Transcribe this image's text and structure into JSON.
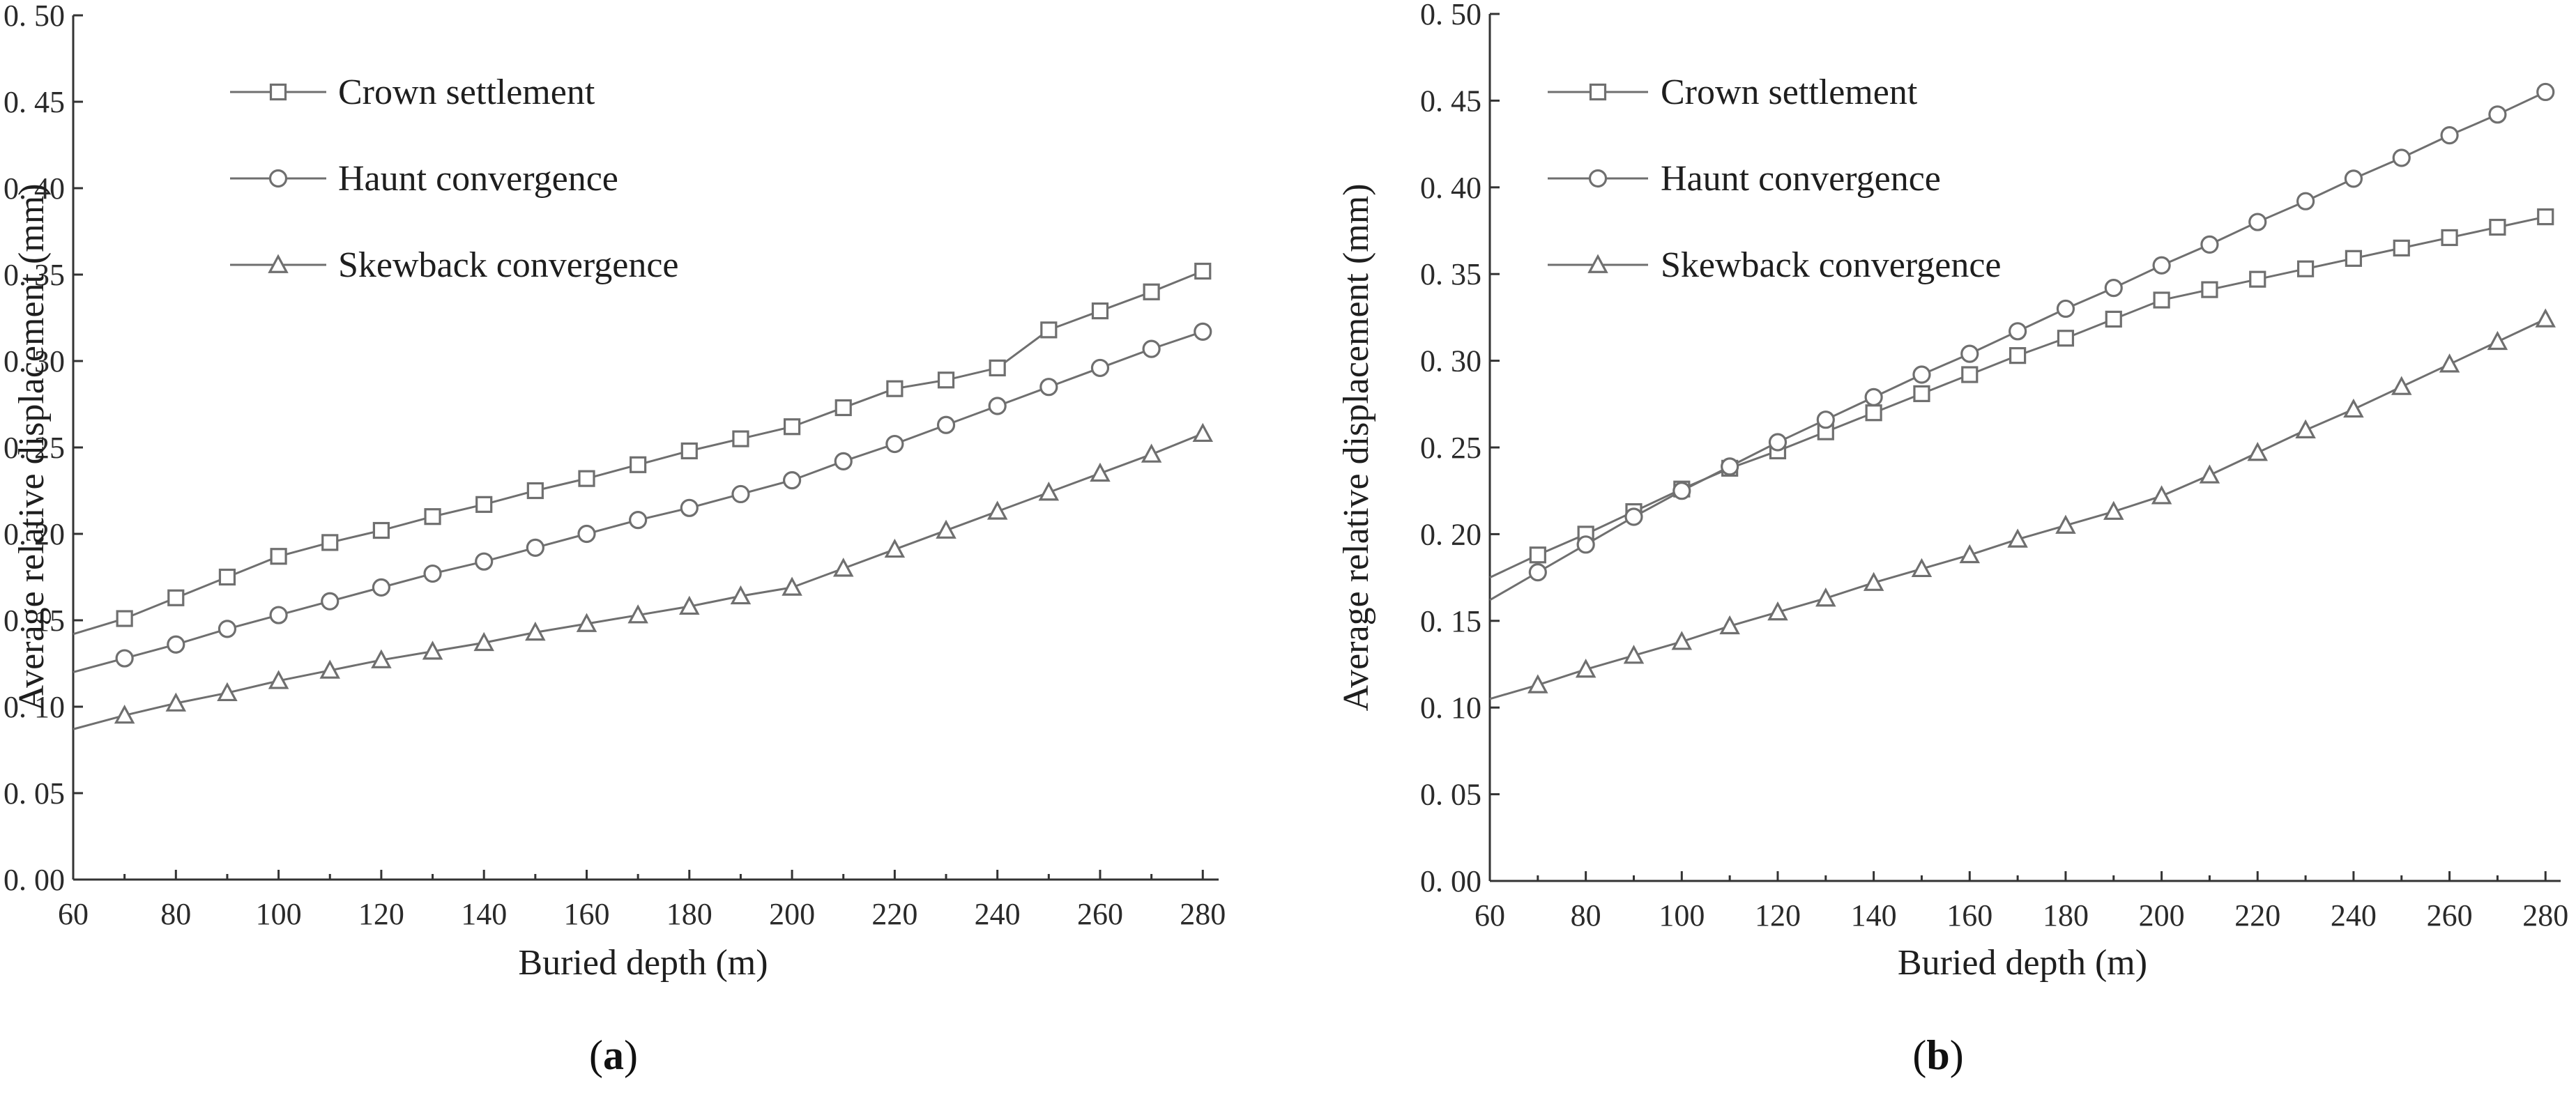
{
  "figure": {
    "panel_labels": [
      {
        "open": "(",
        "letter": "a",
        "close": ")"
      },
      {
        "open": "(",
        "letter": "b",
        "close": ")"
      }
    ]
  },
  "colors": {
    "line": "#6f6f6f",
    "axis": "#333333",
    "text": "#222222"
  },
  "chart_data": [
    {
      "type": "line",
      "id": "a",
      "title": "",
      "xlabel": "Buried depth (m)",
      "ylabel": "Average relative displacement (mm)",
      "xlim": [
        60,
        282
      ],
      "ylim": [
        0,
        0.5
      ],
      "xticks": [
        60,
        80,
        100,
        120,
        140,
        160,
        180,
        200,
        220,
        240,
        260,
        280
      ],
      "yticks": [
        0,
        0.05,
        0.1,
        0.15,
        0.2,
        0.25,
        0.3,
        0.35,
        0.4,
        0.45,
        0.5
      ],
      "ytick_labels": [
        "0. 00",
        "0. 05",
        "0. 10",
        "0. 15",
        "0. 20",
        "0. 25",
        "0. 30",
        "0. 35",
        "0. 40",
        "0. 45",
        "0. 50"
      ],
      "grid": false,
      "legend_position": "top-left",
      "x": [
        60,
        70,
        80,
        90,
        100,
        110,
        120,
        130,
        140,
        150,
        160,
        170,
        180,
        190,
        200,
        210,
        220,
        230,
        240,
        250,
        260,
        270,
        280
      ],
      "series": [
        {
          "name": "Crown settlement",
          "marker": "square",
          "values": [
            0.142,
            0.151,
            0.163,
            0.175,
            0.187,
            0.195,
            0.202,
            0.21,
            0.217,
            0.225,
            0.232,
            0.24,
            0.248,
            0.255,
            0.262,
            0.273,
            0.284,
            0.289,
            0.296,
            0.318,
            0.329,
            0.34,
            0.352
          ]
        },
        {
          "name": "Haunt convergence",
          "marker": "circle",
          "values": [
            0.12,
            0.128,
            0.136,
            0.145,
            0.153,
            0.161,
            0.169,
            0.177,
            0.184,
            0.192,
            0.2,
            0.208,
            0.215,
            0.223,
            0.231,
            0.242,
            0.252,
            0.263,
            0.274,
            0.285,
            0.296,
            0.307,
            0.317
          ]
        },
        {
          "name": "Skewback convergence",
          "marker": "triangle",
          "values": [
            0.087,
            0.095,
            0.102,
            0.108,
            0.115,
            0.121,
            0.127,
            0.132,
            0.137,
            0.143,
            0.148,
            0.153,
            0.158,
            0.164,
            0.169,
            0.18,
            0.191,
            0.202,
            0.213,
            0.224,
            0.235,
            0.246,
            0.258
          ]
        }
      ]
    },
    {
      "type": "line",
      "id": "b",
      "title": "",
      "xlabel": "Buried depth (m)",
      "ylabel": "Average relative displacement (mm)",
      "xlim": [
        60,
        282
      ],
      "ylim": [
        0,
        0.5
      ],
      "xticks": [
        60,
        80,
        100,
        120,
        140,
        160,
        180,
        200,
        220,
        240,
        260,
        280
      ],
      "yticks": [
        0,
        0.05,
        0.1,
        0.15,
        0.2,
        0.25,
        0.3,
        0.35,
        0.4,
        0.45,
        0.5
      ],
      "ytick_labels": [
        "0. 00",
        "0. 05",
        "0. 10",
        "0. 15",
        "0. 20",
        "0. 25",
        "0. 30",
        "0. 35",
        "0. 40",
        "0. 45",
        "0. 50"
      ],
      "grid": false,
      "legend_position": "top-left",
      "x": [
        60,
        70,
        80,
        90,
        100,
        110,
        120,
        130,
        140,
        150,
        160,
        170,
        180,
        190,
        200,
        210,
        220,
        230,
        240,
        250,
        260,
        270,
        280
      ],
      "series": [
        {
          "name": "Crown settlement",
          "marker": "square",
          "values": [
            0.175,
            0.188,
            0.2,
            0.213,
            0.226,
            0.238,
            0.248,
            0.259,
            0.27,
            0.281,
            0.292,
            0.303,
            0.313,
            0.324,
            0.335,
            0.341,
            0.347,
            0.353,
            0.359,
            0.365,
            0.371,
            0.377,
            0.383
          ]
        },
        {
          "name": "Haunt convergence",
          "marker": "circle",
          "values": [
            0.162,
            0.178,
            0.194,
            0.21,
            0.225,
            0.239,
            0.253,
            0.266,
            0.279,
            0.292,
            0.304,
            0.317,
            0.33,
            0.342,
            0.355,
            0.367,
            0.38,
            0.392,
            0.405,
            0.417,
            0.43,
            0.442,
            0.455
          ]
        },
        {
          "name": "Skewback convergence",
          "marker": "triangle",
          "values": [
            0.105,
            0.113,
            0.122,
            0.13,
            0.138,
            0.147,
            0.155,
            0.163,
            0.172,
            0.18,
            0.188,
            0.197,
            0.205,
            0.213,
            0.222,
            0.234,
            0.247,
            0.26,
            0.272,
            0.285,
            0.298,
            0.311,
            0.324
          ]
        }
      ]
    }
  ]
}
